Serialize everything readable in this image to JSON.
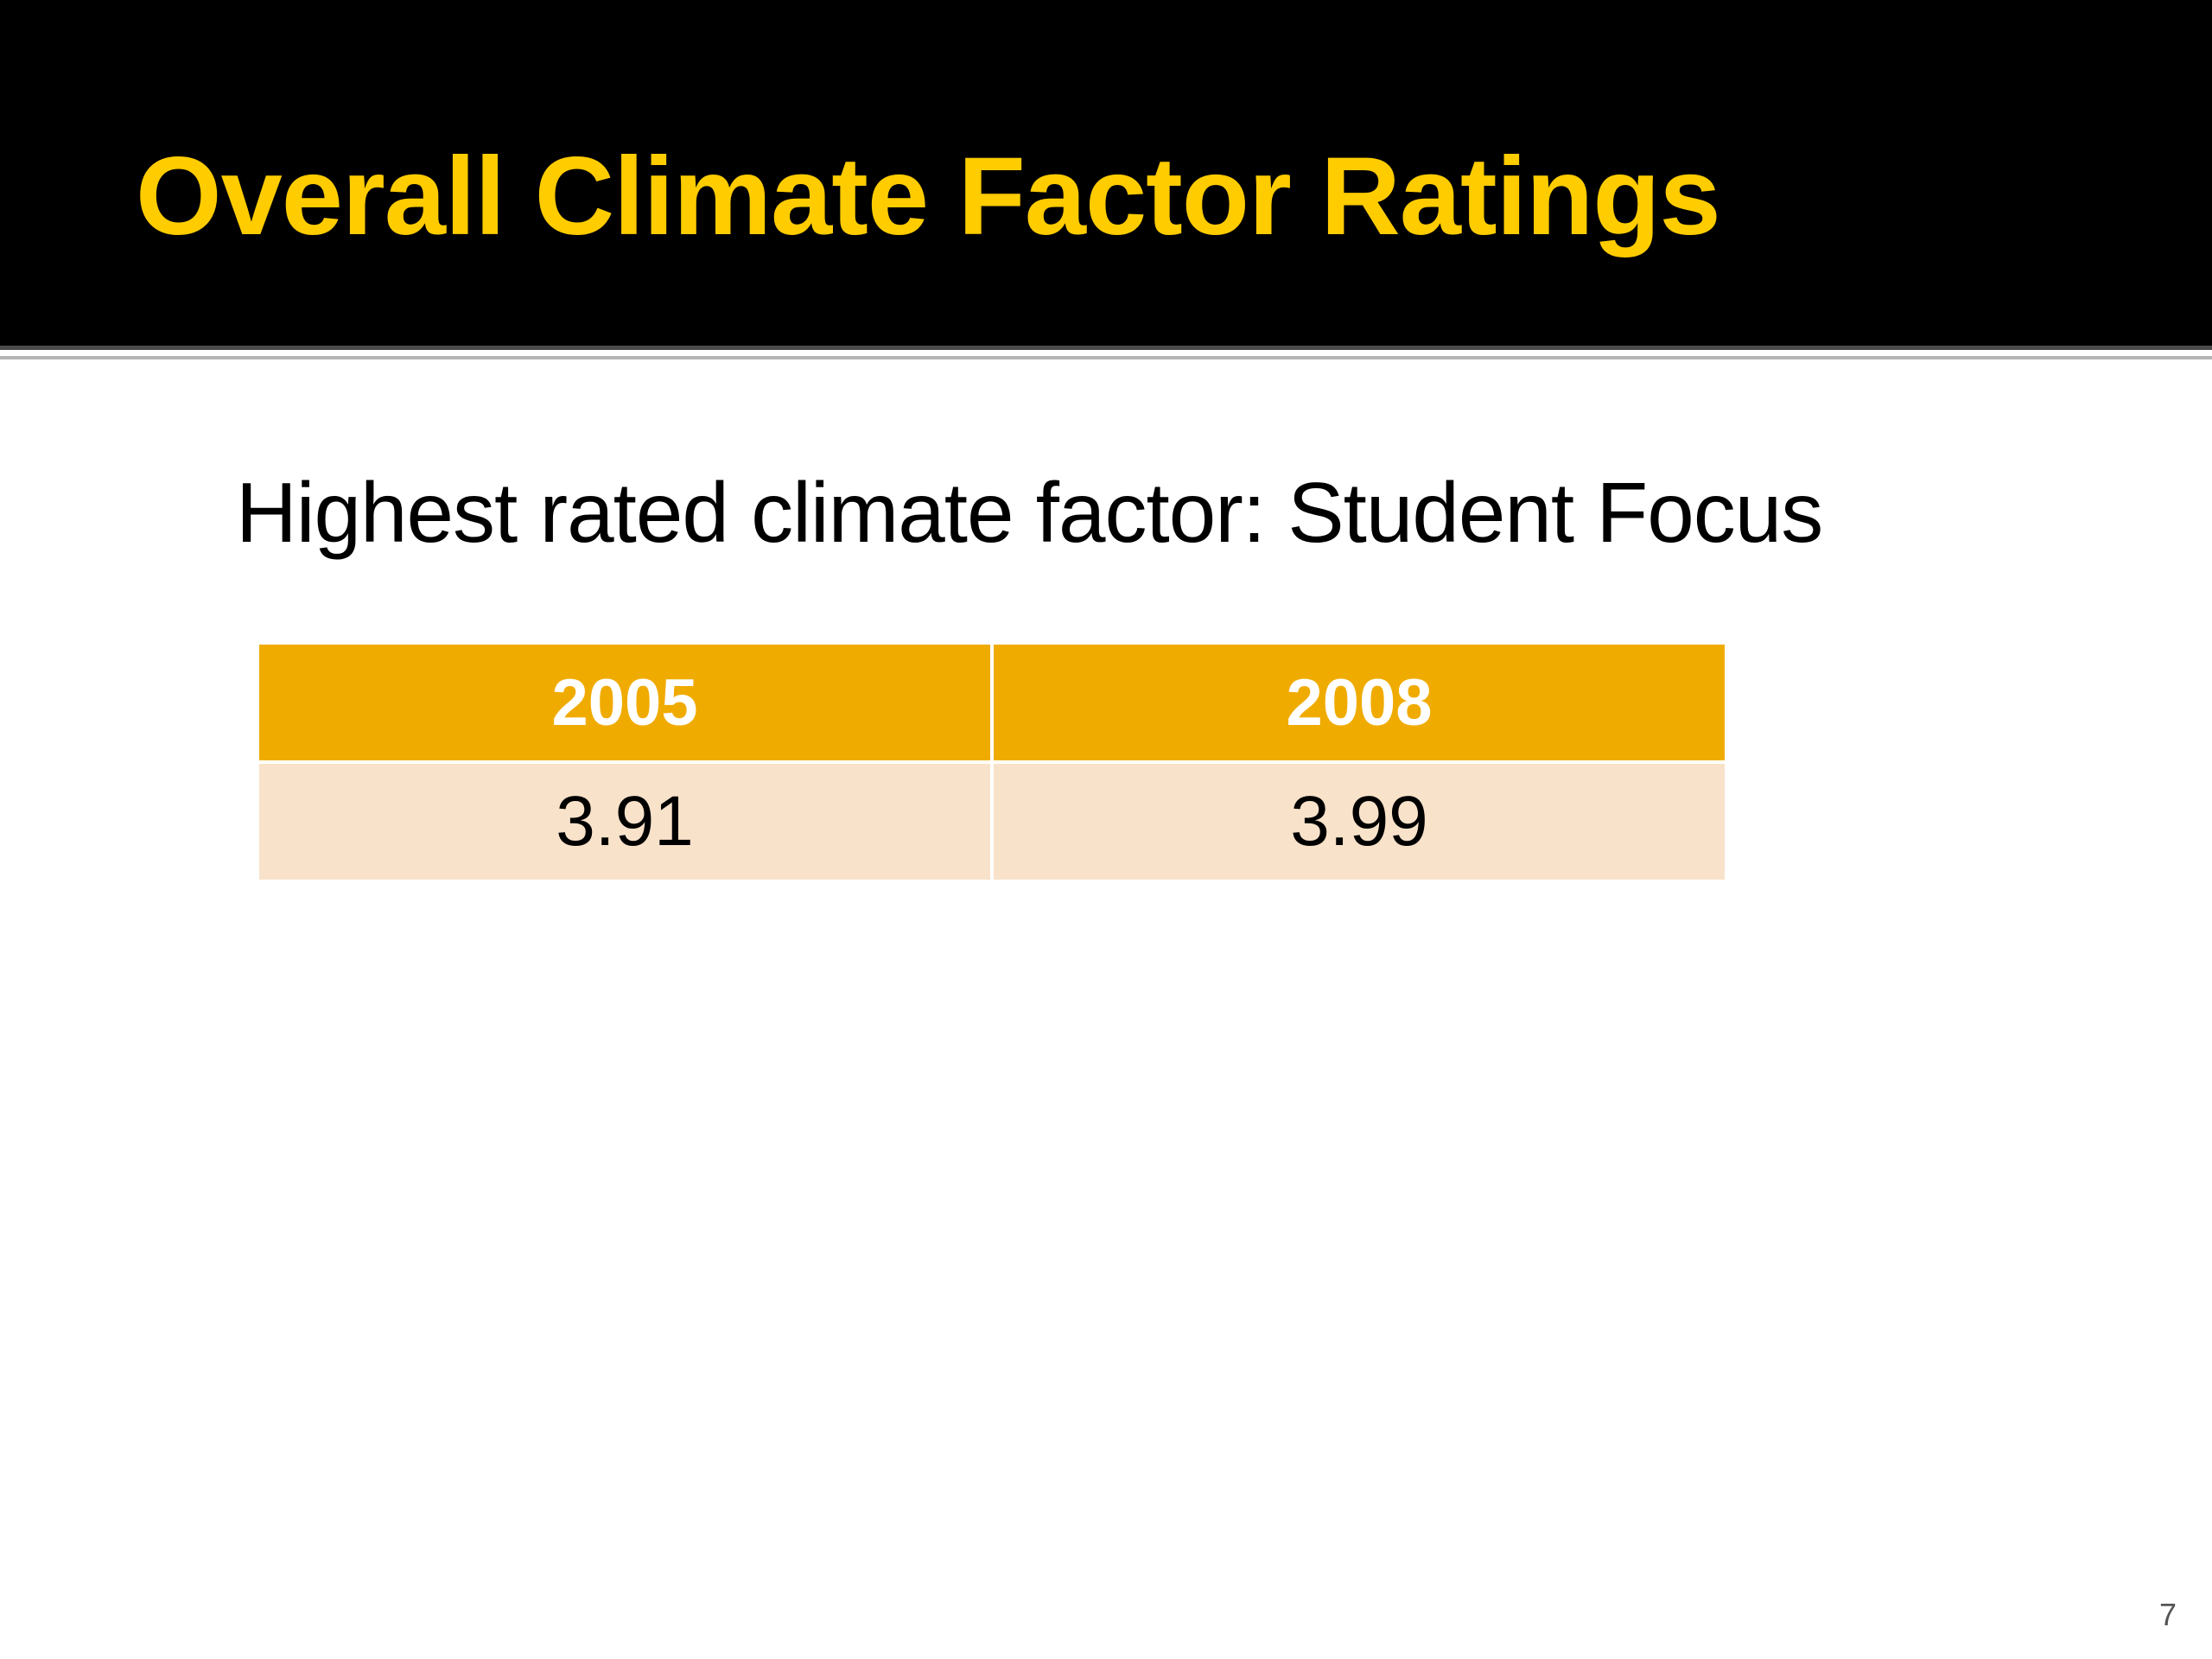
{
  "slide": {
    "title": "Overall Climate Factor Ratings",
    "subtitle": "Highest rated climate factor: Student Focus",
    "page_number": "7"
  },
  "table": {
    "headers": [
      "2005",
      "2008"
    ],
    "rows": [
      [
        "3.91",
        "3.99"
      ]
    ]
  },
  "colors": {
    "title_bar": "#000000",
    "title_text": "#ffcc00",
    "header_fill": "#f0ab00",
    "row_fill": "#f8e2ca"
  }
}
